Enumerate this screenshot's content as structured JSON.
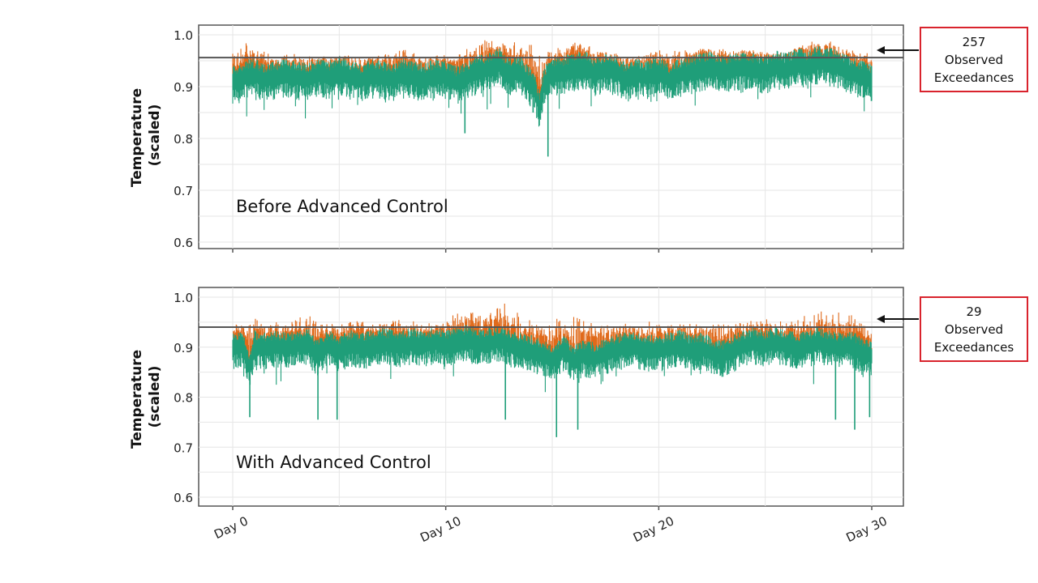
{
  "chart_data": [
    {
      "type": "line",
      "panel_label": "Before Advanced Control",
      "ylabel_lines": [
        "Temperature",
        "(scaled)"
      ],
      "xlabel": "",
      "x_range_days": [
        0,
        30
      ],
      "ylim": [
        0.59,
        1.02
      ],
      "y_ticks": [
        1.0,
        0.9,
        0.8,
        0.7,
        0.6
      ],
      "y_tick_labels": [
        "1.0",
        "0.9",
        "0.8",
        "0.7",
        "0.6"
      ],
      "x_ticks": [
        0,
        10,
        20,
        30
      ],
      "x_tick_labels": [],
      "grid": true,
      "threshold": 0.956,
      "series": [
        {
          "color": "#e06a1b",
          "x": [
            0,
            1,
            2,
            3,
            4,
            5,
            6,
            7,
            8,
            9,
            10,
            11,
            12,
            13,
            14,
            15,
            16,
            17,
            18,
            19,
            20,
            21,
            22,
            23,
            24,
            25,
            26,
            27,
            28,
            29,
            30
          ],
          "y": [
            0.98,
            0.99,
            0.96,
            0.965,
            0.96,
            0.965,
            0.96,
            0.965,
            0.985,
            0.96,
            0.965,
            0.98,
            1.0,
            0.99,
            0.99,
            0.97,
            1.0,
            0.975,
            0.965,
            0.96,
            0.975,
            0.97,
            0.975,
            0.975,
            0.975,
            0.97,
            0.965,
            0.99,
            0.99,
            0.975,
            0.965
          ]
        },
        {
          "color": "#1f9e79",
          "x": [
            0,
            0.5,
            1,
            1.5,
            2,
            2.5,
            3,
            3.5,
            4,
            4.5,
            5,
            5.5,
            6,
            6.5,
            7,
            7.5,
            8,
            8.5,
            9,
            9.5,
            10,
            10.5,
            11,
            11.5,
            12,
            12.5,
            13,
            13.5,
            14,
            14.2,
            14.4,
            14.6,
            14.8,
            15,
            15.5,
            16,
            16.5,
            17,
            17.5,
            18,
            18.5,
            19,
            19.5,
            20,
            20.5,
            21,
            21.5,
            22,
            22.5,
            23,
            23.5,
            24,
            24.5,
            25,
            25.5,
            26,
            26.5,
            27,
            27.5,
            28,
            28.5,
            29,
            29.5,
            30
          ],
          "y": [
            0.905,
            0.915,
            0.92,
            0.91,
            0.915,
            0.92,
            0.915,
            0.91,
            0.92,
            0.915,
            0.925,
            0.915,
            0.91,
            0.92,
            0.915,
            0.91,
            0.92,
            0.915,
            0.91,
            0.92,
            0.915,
            0.905,
            0.915,
            0.925,
            0.93,
            0.94,
            0.92,
            0.925,
            0.9,
            0.89,
            0.85,
            0.9,
            0.915,
            0.92,
            0.925,
            0.93,
            0.935,
            0.92,
            0.93,
            0.925,
            0.91,
            0.92,
            0.915,
            0.925,
            0.91,
            0.92,
            0.925,
            0.93,
            0.935,
            0.925,
            0.93,
            0.935,
            0.93,
            0.925,
            0.935,
            0.93,
            0.94,
            0.935,
            0.945,
            0.94,
            0.935,
            0.925,
            0.915,
            0.91
          ]
        }
      ]
    },
    {
      "type": "line",
      "panel_label": "With Advanced Control",
      "ylabel_lines": [
        "Temperature",
        "(scaled)"
      ],
      "xlabel": "",
      "x_range_days": [
        0,
        30
      ],
      "ylim": [
        0.59,
        1.02
      ],
      "y_ticks": [
        1.0,
        0.9,
        0.8,
        0.7,
        0.6
      ],
      "y_tick_labels": [
        "1.0",
        "0.9",
        "0.8",
        "0.7",
        "0.6"
      ],
      "x_ticks": [
        0,
        10,
        20,
        30
      ],
      "x_tick_labels": [
        "Day 0",
        "Day 10",
        "Day 20",
        "Day 30"
      ],
      "grid": true,
      "threshold": 0.94,
      "series": [
        {
          "color": "#e06a1b",
          "x": [
            0,
            1,
            2,
            3,
            4,
            5,
            6,
            7,
            8,
            9,
            10,
            11,
            12,
            12.5,
            13,
            14,
            15,
            16,
            17,
            18,
            19,
            20,
            21,
            22,
            23,
            24,
            25,
            26,
            27,
            28,
            29,
            30
          ],
          "y": [
            0.95,
            0.96,
            0.95,
            0.97,
            0.97,
            0.95,
            0.96,
            0.95,
            0.96,
            0.95,
            0.96,
            0.98,
            0.97,
            1.0,
            0.98,
            0.96,
            0.96,
            0.97,
            0.95,
            0.96,
            0.95,
            0.96,
            0.95,
            0.95,
            0.975,
            0.95,
            0.96,
            0.96,
            0.97,
            0.98,
            0.97,
            0.96
          ]
        },
        {
          "color": "#1f9e79",
          "x": [
            0,
            0.5,
            0.8,
            1,
            1.5,
            2,
            2.5,
            3,
            3.5,
            4,
            4.5,
            5,
            5.5,
            6,
            6.5,
            7,
            7.5,
            8,
            8.5,
            9,
            9.5,
            10,
            10.5,
            11,
            11.5,
            12,
            12.5,
            13,
            13.5,
            14,
            14.5,
            15,
            15.5,
            16,
            16.5,
            17,
            17.5,
            18,
            18.5,
            19,
            19.5,
            20,
            20.5,
            21,
            21.5,
            22,
            22.5,
            23,
            23.5,
            24,
            24.5,
            25,
            25.5,
            26,
            26.5,
            27,
            27.5,
            28,
            28.5,
            29,
            29.5,
            30
          ],
          "y": [
            0.895,
            0.9,
            0.85,
            0.9,
            0.895,
            0.9,
            0.895,
            0.9,
            0.905,
            0.88,
            0.9,
            0.89,
            0.9,
            0.895,
            0.9,
            0.905,
            0.9,
            0.9,
            0.905,
            0.9,
            0.905,
            0.9,
            0.905,
            0.91,
            0.9,
            0.905,
            0.91,
            0.9,
            0.895,
            0.89,
            0.88,
            0.87,
            0.89,
            0.87,
            0.88,
            0.875,
            0.885,
            0.89,
            0.9,
            0.895,
            0.89,
            0.89,
            0.895,
            0.9,
            0.89,
            0.895,
            0.885,
            0.88,
            0.89,
            0.9,
            0.905,
            0.9,
            0.905,
            0.9,
            0.895,
            0.9,
            0.905,
            0.9,
            0.895,
            0.9,
            0.885,
            0.88
          ]
        }
      ],
      "dips": [
        {
          "x": 0.8,
          "y": 0.76
        },
        {
          "x": 4.0,
          "y": 0.755
        },
        {
          "x": 4.9,
          "y": 0.755
        },
        {
          "x": 12.8,
          "y": 0.755
        },
        {
          "x": 15.2,
          "y": 0.72
        },
        {
          "x": 16.2,
          "y": 0.735
        },
        {
          "x": 28.3,
          "y": 0.755
        },
        {
          "x": 29.2,
          "y": 0.735
        },
        {
          "x": 29.9,
          "y": 0.76
        }
      ]
    }
  ],
  "callouts": [
    {
      "count": "257",
      "line2": "Observed",
      "line3": "Exceedances"
    },
    {
      "count": "29",
      "line2": "Observed",
      "line3": "Exceedances"
    }
  ],
  "colors": {
    "before": "#e06a1b",
    "after": "#1f9e79",
    "threshold": "#555555",
    "callout_border": "#d9232d",
    "grid": "#e6e6e6",
    "frame": "#555555"
  }
}
